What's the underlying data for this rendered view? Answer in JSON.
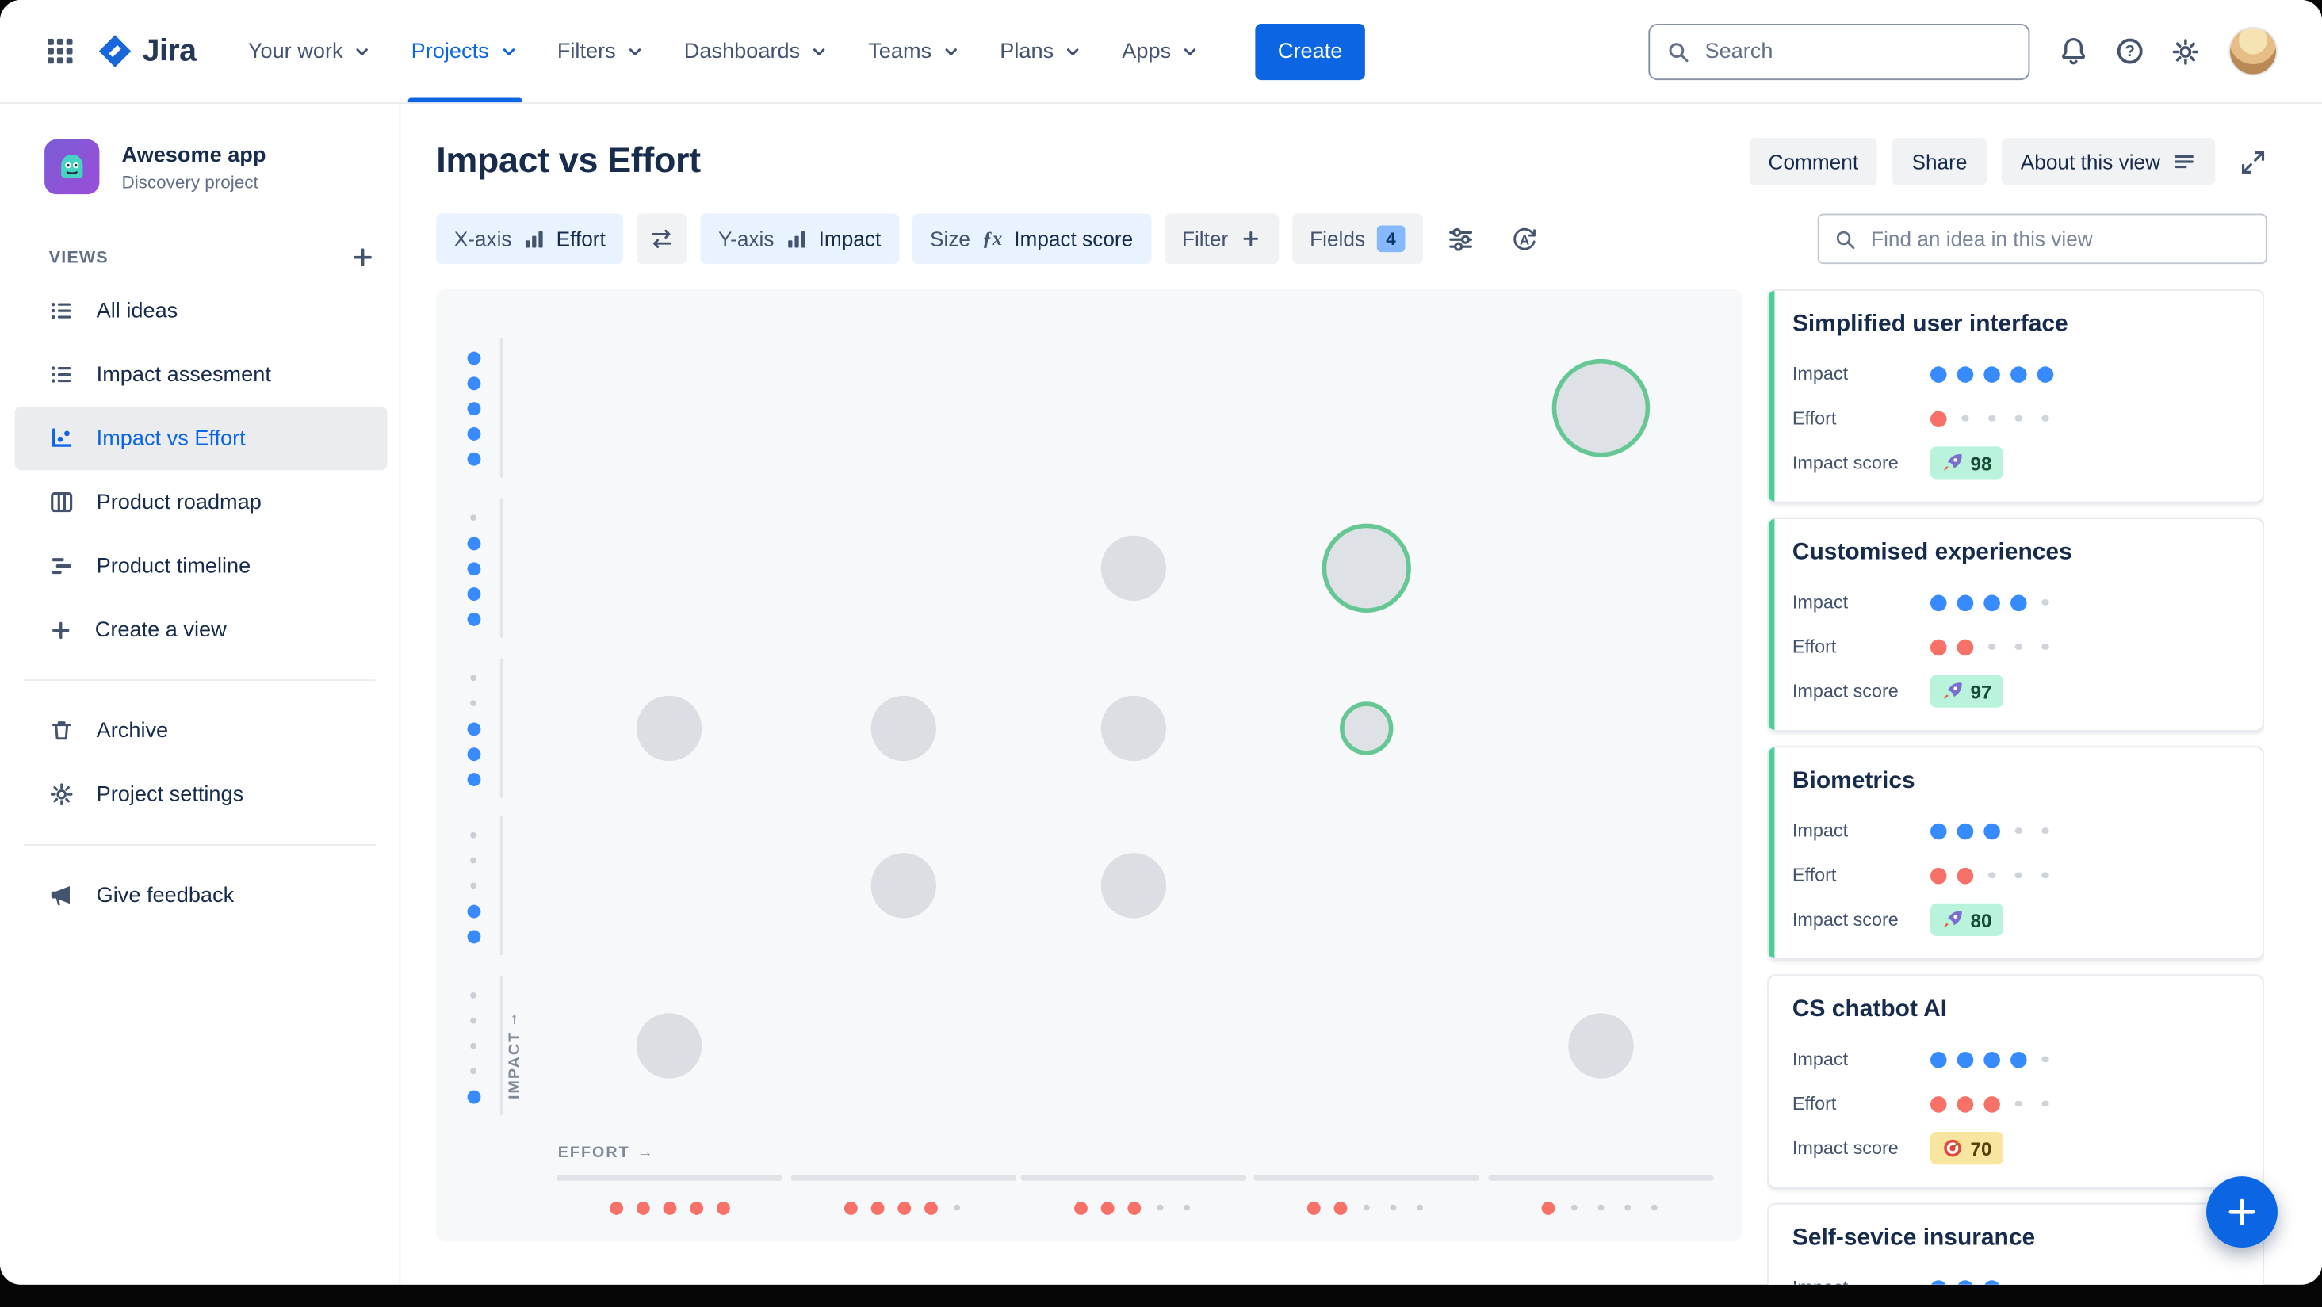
{
  "colors": {
    "accent-blue": "#0C66E4",
    "heading": "#172B4D",
    "dot-blue": "#388BFF",
    "dot-red": "#F87168",
    "dot-empty": "#C9CFD6",
    "bubble-gray": "#DBDFE4",
    "bubble-ring-green": "#66C795",
    "card-accent-green": "#4BCE97",
    "badge-green-bg": "#BAF3DB",
    "badge-green-text": "#164B35",
    "badge-yellow-bg": "#F8E6A0",
    "badge-yellow-text": "#533F04",
    "chip-blue-bg": "#E9F2FF",
    "chip-gray-bg": "#F1F2F4"
  },
  "topnav": {
    "logo_text": "Jira",
    "items": [
      {
        "label": "Your work"
      },
      {
        "label": "Projects"
      },
      {
        "label": "Filters"
      },
      {
        "label": "Dashboards"
      },
      {
        "label": "Teams"
      },
      {
        "label": "Plans"
      },
      {
        "label": "Apps"
      }
    ],
    "active_item": "Projects",
    "create_label": "Create",
    "search_placeholder": "Search",
    "help_glyph": "?"
  },
  "sidebar": {
    "project": {
      "name": "Awesome app",
      "type": "Discovery project"
    },
    "views_label": "VIEWS",
    "items": [
      {
        "label": "All ideas",
        "icon": "list"
      },
      {
        "label": "Impact assesment",
        "icon": "list"
      },
      {
        "label": "Impact vs Effort",
        "icon": "chart",
        "selected": true
      },
      {
        "label": "Product roadmap",
        "icon": "board"
      },
      {
        "label": "Product timeline",
        "icon": "timeline"
      },
      {
        "label": "Create a view",
        "icon": "plus"
      }
    ],
    "secondary": [
      {
        "label": "Archive",
        "icon": "trash"
      },
      {
        "label": "Project settings",
        "icon": "gear"
      }
    ],
    "footer": [
      {
        "label": "Give feedback",
        "icon": "megaphone"
      }
    ]
  },
  "header": {
    "title": "Impact vs Effort",
    "comment_label": "Comment",
    "share_label": "Share",
    "about_label": "About this view"
  },
  "toolbar": {
    "xaxis": {
      "label": "X-axis",
      "value": "Effort"
    },
    "yaxis": {
      "label": "Y-axis",
      "value": "Impact"
    },
    "size": {
      "label": "Size",
      "fx_glyph": "ƒx",
      "value": "Impact score"
    },
    "filter_label": "Filter",
    "fields_label": "Fields",
    "fields_count": "4",
    "find_placeholder": "Find an idea in this view"
  },
  "chart_data": {
    "type": "scatter",
    "title": "Impact vs Effort",
    "xlabel": "EFFORT",
    "ylabel": "IMPACT",
    "xlabel_arrow": "→",
    "ylabel_arrow": "↑",
    "x_range": [
      1,
      5
    ],
    "y_range": [
      1,
      5
    ],
    "grid": false,
    "x_axis_scale": [
      {
        "filled": 5
      },
      {
        "filled": 4
      },
      {
        "filled": 3
      },
      {
        "filled": 2
      },
      {
        "filled": 1
      }
    ],
    "y_axis_scale": [
      {
        "filled": 5
      },
      {
        "filled": 4
      },
      {
        "filled": 3
      },
      {
        "filled": 2
      },
      {
        "filled": 1
      }
    ],
    "points": [
      {
        "effort": 5,
        "impact": 5,
        "r": 33,
        "highlighted": true
      },
      {
        "effort": 4,
        "impact": 4,
        "r": 30,
        "highlighted": true
      },
      {
        "effort": 3,
        "impact": 4,
        "r": 22,
        "highlighted": false
      },
      {
        "effort": 1,
        "impact": 3,
        "r": 22,
        "highlighted": false
      },
      {
        "effort": 2,
        "impact": 3,
        "r": 22,
        "highlighted": false
      },
      {
        "effort": 3,
        "impact": 3,
        "r": 22,
        "highlighted": false
      },
      {
        "effort": 4,
        "impact": 3,
        "r": 18,
        "highlighted": true
      },
      {
        "effort": 2,
        "impact": 2,
        "r": 22,
        "highlighted": false
      },
      {
        "effort": 3,
        "impact": 2,
        "r": 22,
        "highlighted": false
      },
      {
        "effort": 1,
        "impact": 1,
        "r": 22,
        "highlighted": false
      },
      {
        "effort": 5,
        "impact": 1,
        "r": 22,
        "highlighted": false
      }
    ]
  },
  "card_labels": {
    "impact": "Impact",
    "effort": "Effort",
    "score": "Impact score"
  },
  "cards": [
    {
      "title": "Simplified user interface",
      "impact": 5,
      "effort": 1,
      "score": "98",
      "score_icon": "rocket",
      "score_style": "green",
      "accent": true
    },
    {
      "title": "Customised experiences",
      "impact": 4,
      "effort": 2,
      "score": "97",
      "score_icon": "rocket",
      "score_style": "green",
      "accent": true
    },
    {
      "title": "Biometrics",
      "impact": 3,
      "effort": 2,
      "score": "80",
      "score_icon": "rocket",
      "score_style": "green",
      "accent": true
    },
    {
      "title": "CS chatbot AI",
      "impact": 4,
      "effort": 3,
      "score": "70",
      "score_icon": "target",
      "score_style": "yellow",
      "accent": false
    },
    {
      "title": "Self-sevice insurance",
      "impact": 3,
      "effort": null,
      "score": null,
      "accent": false
    }
  ]
}
